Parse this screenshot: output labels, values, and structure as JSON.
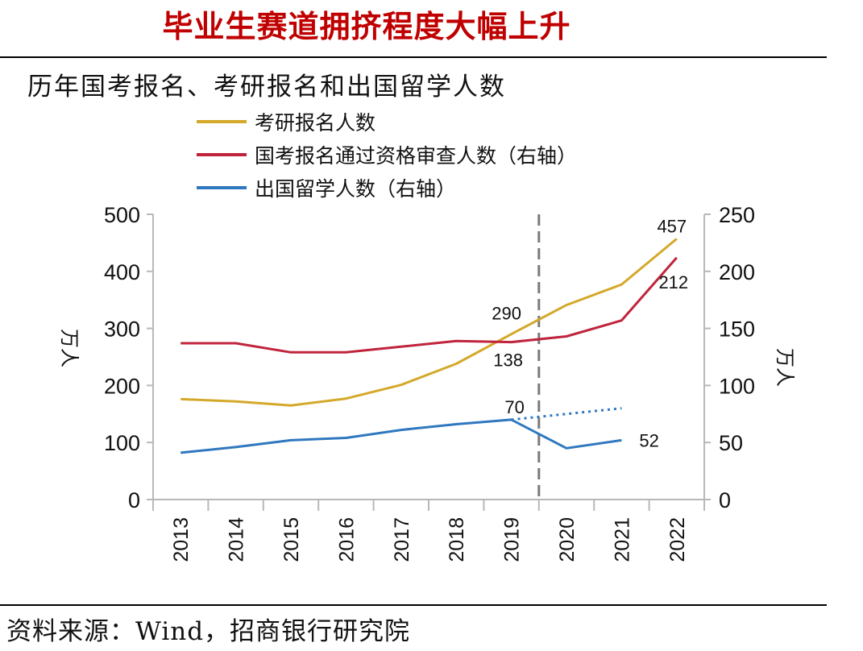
{
  "page": {
    "headline": "毕业生赛道拥挤程度大幅上升",
    "source": "资料来源：Wind，招商银行研究院"
  },
  "chart_data": {
    "type": "line",
    "title": "历年国考报名、考研报名和出国留学人数",
    "categories": [
      "2013",
      "2014",
      "2015",
      "2016",
      "2017",
      "2018",
      "2019",
      "2020",
      "2021",
      "2022"
    ],
    "left_axis": {
      "label": "万人",
      "ylim": [
        0,
        500
      ],
      "ticks": [
        "0",
        "100",
        "200",
        "300",
        "400",
        "500"
      ]
    },
    "right_axis": {
      "label": "万人",
      "ylim": [
        0,
        250
      ],
      "ticks": [
        "0",
        "50",
        "100",
        "150",
        "200",
        "250"
      ]
    },
    "series": [
      {
        "name": "考研报名人数",
        "axis": "left",
        "color": "#d4a82a",
        "values": [
          176,
          172,
          165,
          177,
          201,
          238,
          290,
          341,
          377,
          457
        ]
      },
      {
        "name": "国考报名通过资格审查人数（右轴）",
        "axis": "right",
        "color": "#c0243c",
        "values": [
          137,
          137,
          129,
          129,
          134,
          139,
          138,
          143,
          157,
          212
        ]
      },
      {
        "name": "出国留学人数（右轴）",
        "axis": "right",
        "color": "#2f78bf",
        "values": [
          41,
          46,
          52,
          54,
          61,
          66,
          70,
          45,
          52,
          null
        ]
      }
    ],
    "dotted_trend": {
      "series": "出国留学人数（右轴）",
      "color": "#2f78bf",
      "from": {
        "x": "2019",
        "y": 70
      },
      "to": {
        "x": "2021",
        "y": 80
      }
    },
    "vertical_divider_between": [
      "2019",
      "2020"
    ],
    "annotations": [
      {
        "text": "457",
        "series": "考研报名人数",
        "x": "2022"
      },
      {
        "text": "290",
        "series": "考研报名人数",
        "x": "2019"
      },
      {
        "text": "212",
        "series": "国考报名通过资格审查人数（右轴）",
        "x": "2022"
      },
      {
        "text": "138",
        "series": "国考报名通过资格审查人数（右轴）",
        "x": "2019"
      },
      {
        "text": "70",
        "series": "出国留学人数（右轴）",
        "x": "2019"
      },
      {
        "text": "52",
        "series": "出国留学人数（右轴）",
        "x": "2021"
      }
    ],
    "legend": "top-center",
    "grid": false
  }
}
